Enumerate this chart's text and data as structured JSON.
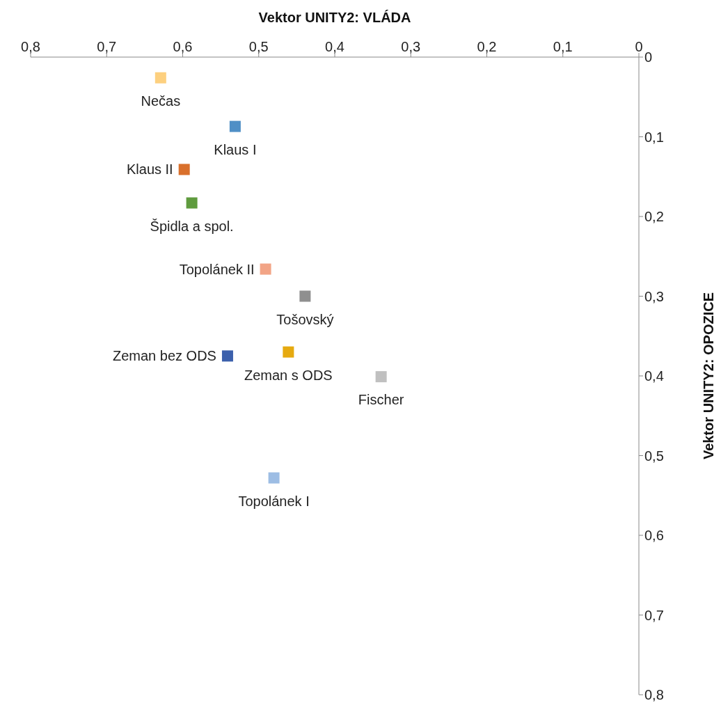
{
  "chart_data": {
    "type": "scatter",
    "xlabel": "Vektor UNITY2: VLÁDA",
    "ylabel": "Vektor UNITY2: OPOZICE",
    "marker": "square",
    "xlim": [
      0.8,
      0
    ],
    "xticks": [
      {
        "value": 0.8,
        "label": "0,8"
      },
      {
        "value": 0.7,
        "label": "0,7"
      },
      {
        "value": 0.6,
        "label": "0,6"
      },
      {
        "value": 0.5,
        "label": "0,5"
      },
      {
        "value": 0.4,
        "label": "0,4"
      },
      {
        "value": 0.3,
        "label": "0,3"
      },
      {
        "value": 0.2,
        "label": "0,2"
      },
      {
        "value": 0.1,
        "label": "0,1"
      },
      0
    ],
    "ylim": [
      0.8,
      0
    ],
    "yticks": [
      0,
      {
        "value": 0.1,
        "label": "0,1"
      },
      {
        "value": 0.2,
        "label": "0,2"
      },
      {
        "value": 0.3,
        "label": "0,3"
      },
      {
        "value": 0.4,
        "label": "0,4"
      },
      {
        "value": 0.5,
        "label": "0,5"
      },
      {
        "value": 0.6,
        "label": "0,6"
      },
      {
        "value": 0.7,
        "label": "0,7"
      },
      {
        "value": 0.8,
        "label": "0,8"
      }
    ],
    "series": [
      {
        "name": "Nečas",
        "color": "#fdd07f",
        "x": [
          0.629
        ],
        "values": [
          0.026
        ]
      },
      {
        "name": "Klaus I",
        "color": "#4f8fc6",
        "x": [
          0.531
        ],
        "values": [
          0.087
        ]
      },
      {
        "name": "Klaus II",
        "color": "#d9702c",
        "x": [
          0.598
        ],
        "values": [
          0.141
        ]
      },
      {
        "name": "Špidla a spol.",
        "color": "#5f9b3e",
        "x": [
          0.588
        ],
        "values": [
          0.183
        ]
      },
      {
        "name": "Topolánek II",
        "color": "#f2a486",
        "x": [
          0.491
        ],
        "values": [
          0.266
        ]
      },
      {
        "name": "Tošovský",
        "color": "#8f8f8f",
        "x": [
          0.439
        ],
        "values": [
          0.3
        ]
      },
      {
        "name": "Zeman bez ODS",
        "color": "#3c60ac",
        "x": [
          0.541
        ],
        "values": [
          0.375
        ]
      },
      {
        "name": "Zeman s ODS",
        "color": "#e6aa10",
        "x": [
          0.461
        ],
        "values": [
          0.37
        ]
      },
      {
        "name": "Fischer",
        "color": "#c0c0c0",
        "x": [
          0.339
        ],
        "values": [
          0.401
        ]
      },
      {
        "name": "Topolánek I",
        "color": "#9dbde4",
        "x": [
          0.48
        ],
        "values": [
          0.528
        ]
      }
    ]
  }
}
